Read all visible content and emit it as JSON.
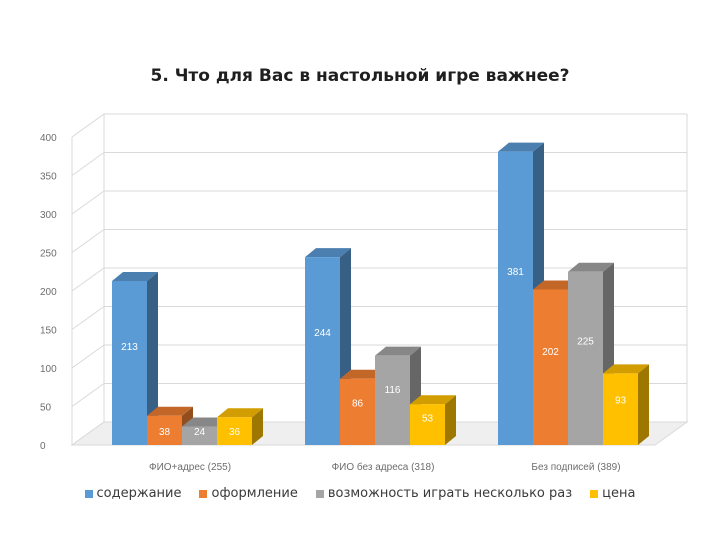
{
  "chart_data": {
    "type": "bar",
    "title": "5. Что для Вас в настольной игре важнее?",
    "categories": [
      "ФИО+адрес (255)",
      "ФИО без адреса (318)",
      "Без подписей (389)"
    ],
    "series": [
      {
        "name": "содержание",
        "values": [
          213,
          244,
          381
        ],
        "color": "#5b9bd5"
      },
      {
        "name": "оформление",
        "values": [
          38,
          86,
          202
        ],
        "color": "#ed7d31"
      },
      {
        "name": "возможность играть несколько раз",
        "values": [
          24,
          116,
          225
        ],
        "color": "#a5a5a5"
      },
      {
        "name": "цена",
        "values": [
          36,
          53,
          93
        ],
        "color": "#ffc000"
      }
    ],
    "ylim": [
      0,
      400
    ],
    "yticks": [
      "0",
      "50",
      "100",
      "150",
      "200",
      "250",
      "300",
      "350",
      "400"
    ],
    "grid": true,
    "legend_position": "bottom",
    "style": "3d-column"
  }
}
